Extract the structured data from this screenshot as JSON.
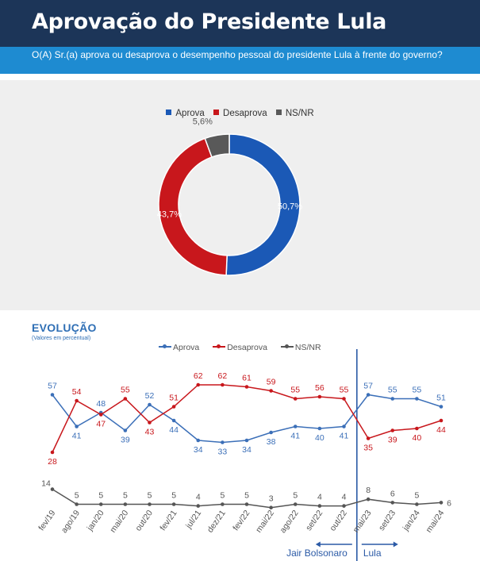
{
  "header": {
    "title": "Aprovação do Presidente Lula"
  },
  "question": {
    "text": "O(A) Sr.(a) aprova ou desaprova o desempenho pessoal do presidente Lula à frente do governo?"
  },
  "colors": {
    "aprova": "#1b59b6",
    "desaprova": "#c8171c",
    "nsnr": "#595959",
    "header": "#1c3558",
    "question_bar": "#1e8bd1"
  },
  "chart_data": [
    {
      "type": "pie",
      "donut": true,
      "legend_position": "top",
      "labels": [
        "Aprova",
        "Desaprova",
        "NS/NR"
      ],
      "values": [
        50.7,
        43.7,
        5.6
      ],
      "value_labels": [
        "50,7%",
        "43,7%",
        "5,6%"
      ]
    },
    {
      "type": "line",
      "title": "EVOLUÇÃO",
      "subtitle": "(Valores em percentual)",
      "legend_position": "top",
      "grid": false,
      "categories": [
        "fev/19",
        "ago/19",
        "jan/20",
        "mai/20",
        "out/20",
        "fev/21",
        "jul/21",
        "dez/21",
        "fev/22",
        "mai/22",
        "ago/22",
        "set/22",
        "out/22",
        "mai/23",
        "set/23",
        "jan/24",
        "mai/24"
      ],
      "series": [
        {
          "name": "Aprova",
          "values": [
            57,
            41,
            48,
            39,
            52,
            44,
            34,
            33,
            34,
            38,
            41,
            40,
            41,
            57,
            55,
            55,
            51
          ]
        },
        {
          "name": "Desaprova",
          "values": [
            28,
            54,
            47,
            55,
            43,
            51,
            62,
            62,
            61,
            59,
            55,
            56,
            55,
            35,
            39,
            40,
            44
          ]
        },
        {
          "name": "NS/NR",
          "values": [
            14,
            5,
            5,
            5,
            5,
            5,
            4,
            5,
            5,
            3,
            5,
            4,
            4,
            8,
            6,
            5,
            6
          ]
        }
      ],
      "annotations": {
        "before": "Jair Bolsonaro",
        "after": "Lula"
      }
    }
  ]
}
